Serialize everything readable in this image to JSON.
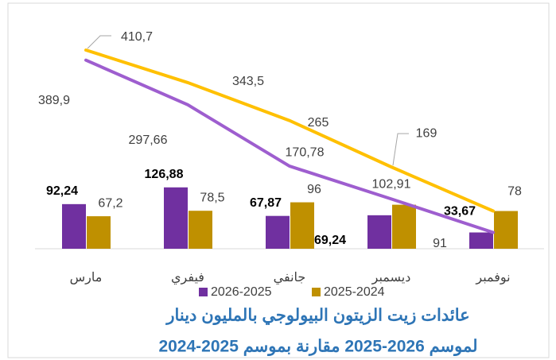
{
  "chart_data": {
    "type": "bar-line",
    "title": "عائدات زيت الزيتون البيولوجي بالمليون دينار",
    "subtitle": "لموسم 2026-2025 مقارنة بموسم 2025-2024",
    "categories": [
      "مارس",
      "فيفري",
      "جانفي",
      "ديسمبر",
      "نوفمبر"
    ],
    "ylim": [
      0,
      460
    ],
    "series": [
      {
        "name": "2026-2025",
        "kind": "bar",
        "color": "#7030a0",
        "values": [
          92.24,
          126.88,
          67.87,
          69.24,
          33.67
        ],
        "value_labels": [
          "92,24",
          "126,88",
          "67,87",
          "69,24",
          "33,67"
        ]
      },
      {
        "name": "2025-2024",
        "kind": "bar",
        "color": "#bf9000",
        "values": [
          67.2,
          78.5,
          96,
          91,
          78
        ],
        "value_labels": [
          "67,2",
          "78,5",
          "96",
          "91",
          "78"
        ]
      },
      {
        "kind": "line",
        "color": "#9e5ecf",
        "values": [
          389.9,
          297.66,
          170.78,
          102.91,
          33.67
        ],
        "value_labels": [
          "389,9",
          "297,66",
          "170,78",
          "102,91",
          null
        ]
      },
      {
        "kind": "line",
        "color": "#ffc000",
        "values": [
          410.7,
          343.5,
          265,
          169,
          78
        ],
        "value_labels": [
          "410,7",
          "343,5",
          "265",
          "169",
          null
        ]
      }
    ],
    "legend": "bottom"
  }
}
